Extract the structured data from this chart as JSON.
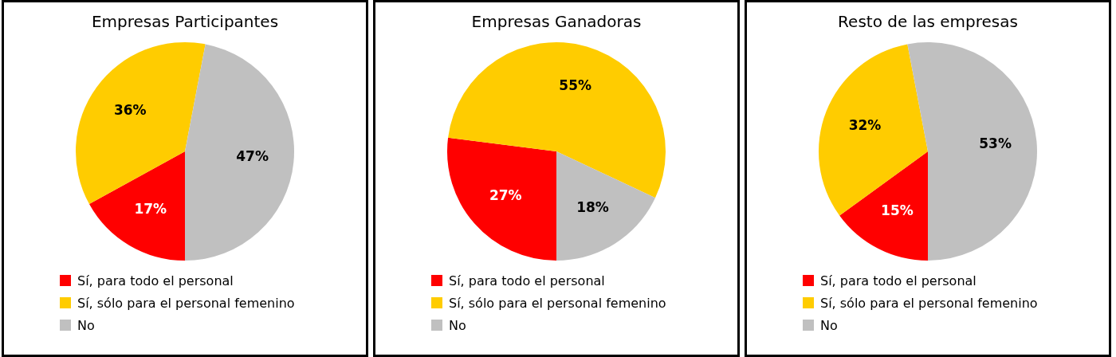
{
  "chart_data": [
    {
      "type": "pie",
      "title": "Empresas Participantes",
      "categories": [
        "Sí, para todo el personal",
        "Sí, sólo para el personal femenino",
        "No"
      ],
      "values": [
        17,
        36,
        47
      ],
      "colors": [
        "#ff0000",
        "#ffcc00",
        "#c0c0c0"
      ],
      "value_labels": [
        "17%",
        "36%",
        "47%"
      ],
      "legend": "bottom"
    },
    {
      "type": "pie",
      "title": "Empresas Ganadoras",
      "categories": [
        "Sí, para todo el personal",
        "Sí, sólo para el personal femenino",
        "No"
      ],
      "values": [
        27,
        55,
        18
      ],
      "colors": [
        "#ff0000",
        "#ffcc00",
        "#c0c0c0"
      ],
      "value_labels": [
        "27%",
        "55%",
        "18%"
      ],
      "legend": "bottom"
    },
    {
      "type": "pie",
      "title": "Resto de las empresas",
      "categories": [
        "Sí, para todo el personal",
        "Sí, sólo para el personal femenino",
        "No"
      ],
      "values": [
        15,
        32,
        53
      ],
      "colors": [
        "#ff0000",
        "#ffcc00",
        "#c0c0c0"
      ],
      "value_labels": [
        "15%",
        "32%",
        "53%"
      ],
      "legend": "bottom"
    }
  ]
}
